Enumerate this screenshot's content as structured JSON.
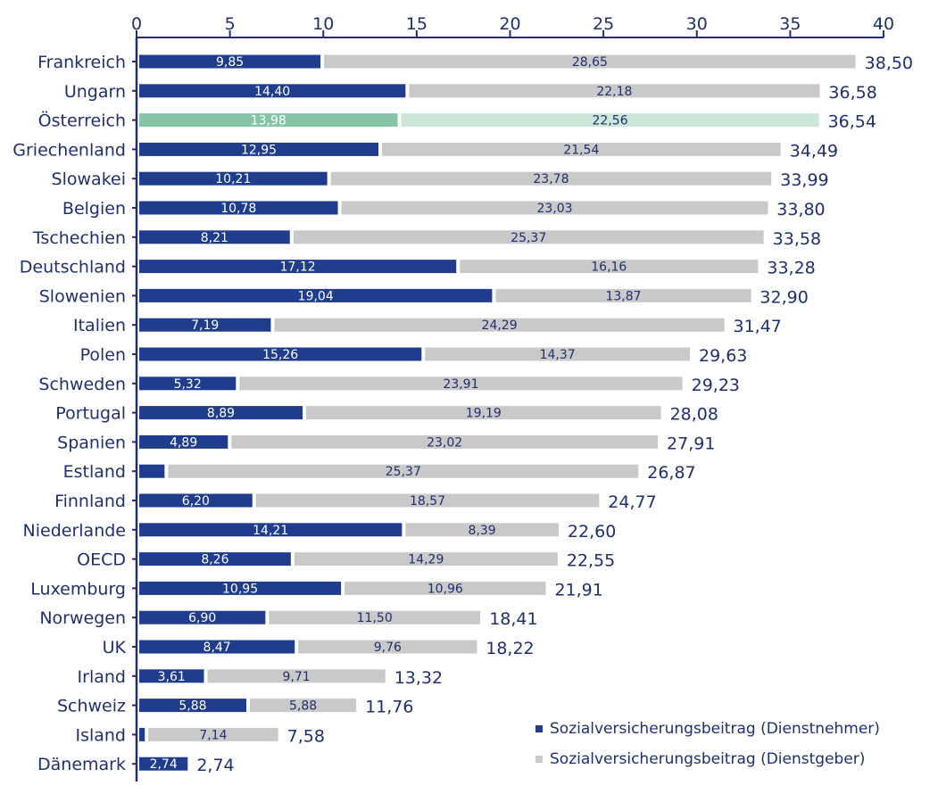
{
  "colors": {
    "employee": "#1f3d8c",
    "employer": "#c9c9c9",
    "highlight_employee": "#86c4a6",
    "highlight_employer": "#cce6d9",
    "axis": "#1f2f6f",
    "text": "#1f2f6f"
  },
  "legend": [
    {
      "label": "Sozialversicherungsbeitrag (Dienstnehmer)",
      "color": "#1f3d8c"
    },
    {
      "label": "Sozialversicherungsbeitrag (Dienstgeber)",
      "color": "#c9c9c9"
    }
  ],
  "chart_data": {
    "type": "bar",
    "orientation": "horizontal",
    "stacked": true,
    "xlim": [
      0,
      40
    ],
    "xticks": [
      "0",
      "5",
      "10",
      "15",
      "20",
      "25",
      "30",
      "35",
      "40"
    ],
    "highlight": "Österreich",
    "categories": [
      "Frankreich",
      "Ungarn",
      "Österreich",
      "Griechenland",
      "Slowakei",
      "Belgien",
      "Tschechien",
      "Deutschland",
      "Slowenien",
      "Italien",
      "Polen",
      "Schweden",
      "Portugal",
      "Spanien",
      "Estland",
      "Finnland",
      "Niederlande",
      "OECD",
      "Luxemburg",
      "Norwegen",
      "UK",
      "Irland",
      "Schweiz",
      "Island",
      "Dänemark"
    ],
    "series": [
      {
        "name": "Sozialversicherungsbeitrag (Dienstnehmer)",
        "values": [
          9.85,
          14.4,
          13.98,
          12.95,
          10.21,
          10.78,
          8.21,
          17.12,
          19.04,
          7.19,
          15.26,
          5.32,
          8.89,
          4.89,
          1.5,
          6.2,
          14.21,
          8.26,
          10.95,
          6.9,
          8.47,
          3.61,
          5.88,
          0.44,
          2.74
        ],
        "labels": [
          "9,85",
          "14,40",
          "13,98",
          "12,95",
          "10,21",
          "10,78",
          "8,21",
          "17,12",
          "19,04",
          "7,19",
          "15,26",
          "5,32",
          "8,89",
          "4,89",
          "",
          "6,20",
          "14,21",
          "8,26",
          "10,95",
          "6,90",
          "8,47",
          "3,61",
          "5,88",
          "",
          "2,74"
        ]
      },
      {
        "name": "Sozialversicherungsbeitrag (Dienstgeber)",
        "values": [
          28.65,
          22.18,
          22.56,
          21.54,
          23.78,
          23.03,
          25.37,
          16.16,
          13.87,
          24.29,
          14.37,
          23.91,
          19.19,
          23.02,
          25.37,
          18.57,
          8.39,
          14.29,
          10.96,
          11.5,
          9.76,
          9.71,
          5.88,
          7.14,
          0
        ],
        "labels": [
          "28,65",
          "22,18",
          "22,56",
          "21,54",
          "23,78",
          "23,03",
          "25,37",
          "16,16",
          "13,87",
          "24,29",
          "14,37",
          "23,91",
          "19,19",
          "23,02",
          "25,37",
          "18,57",
          "8,39",
          "14,29",
          "10,96",
          "11,50",
          "9,76",
          "9,71",
          "5,88",
          "7,14",
          ""
        ]
      }
    ],
    "totals": [
      38.5,
      36.58,
      36.54,
      34.49,
      33.99,
      33.8,
      33.58,
      33.28,
      32.9,
      31.47,
      29.63,
      29.23,
      28.08,
      27.91,
      26.87,
      24.77,
      22.6,
      22.55,
      21.91,
      18.41,
      18.22,
      13.32,
      11.76,
      7.58,
      2.74
    ],
    "total_labels": [
      "38,50",
      "36,58",
      "36,54",
      "34,49",
      "33,99",
      "33,80",
      "33,58",
      "33,28",
      "32,90",
      "31,47",
      "29,63",
      "29,23",
      "28,08",
      "27,91",
      "26,87",
      "24,77",
      "22,60",
      "22,55",
      "21,91",
      "18,41",
      "18,22",
      "13,32",
      "11,76",
      "7,58",
      "2,74"
    ]
  }
}
